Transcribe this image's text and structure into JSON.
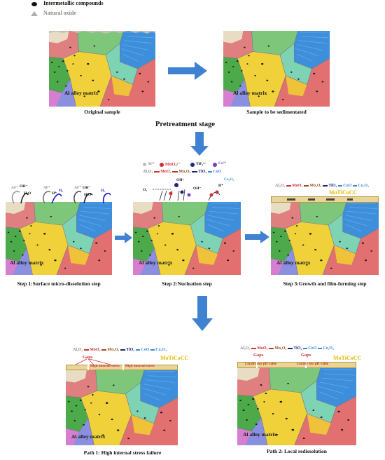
{
  "legend": {
    "intermetallic": "Intermetallic compounds",
    "oxide": "Natural oxide"
  },
  "panels": {
    "original": {
      "matrix": "Al alloy matrix",
      "caption": "Original sample"
    },
    "sedimented": {
      "matrix": "Al alloy matrix",
      "caption": "Sample to be sedimentated"
    },
    "step1": {
      "matrix": "Al alloy matrix",
      "caption": "Step 1:Surface micro-dissolution step"
    },
    "step2": {
      "matrix": "Al alloy matrix",
      "caption": "Step 2:Nucleation step"
    },
    "step3": {
      "matrix": "Al alloy matrix",
      "caption": "Step 3:Growth and film-forming step"
    },
    "path1": {
      "matrix": "Al alloy matrix",
      "caption": "Path 1: High internal stress failure"
    },
    "path2": {
      "matrix": "Al alloy matrix",
      "caption": "Path 2: Local redissolution"
    }
  },
  "pretreatment": "Pretreatment stage",
  "step1_labels": {
    "al": "Al³⁺",
    "oh": "OH⁻",
    "h2o": "H₂O",
    "h": "H⁺",
    "h2": "H₂"
  },
  "step2_legend": {
    "al": "Al³⁺",
    "moo4": "MoO₄²⁻",
    "tif6": "TiF₆²⁻",
    "co": "Co²⁺",
    "al2o3": "Al₂O₃",
    "moo2": "MoO₂",
    "mo2o5": "Mo₂O₅",
    "tio2": "TiO₂",
    "coo": "CoO",
    "co3o4": "Co₃O₄",
    "oh": "OH⁻",
    "h": "H⁺",
    "o2": "O₂"
  },
  "oxides": [
    "Al₂O₃",
    "MoO₂",
    "Mo₂O₅",
    "TiO₂",
    "CoO",
    "Co₃O₄"
  ],
  "coating": "MoTiCoCC",
  "path1_labels": {
    "gaps": "Gaps",
    "stress": "High internal stress"
  },
  "path2_labels": {
    "gaps": "Gaps",
    "ph": "Locally low pH value"
  }
}
